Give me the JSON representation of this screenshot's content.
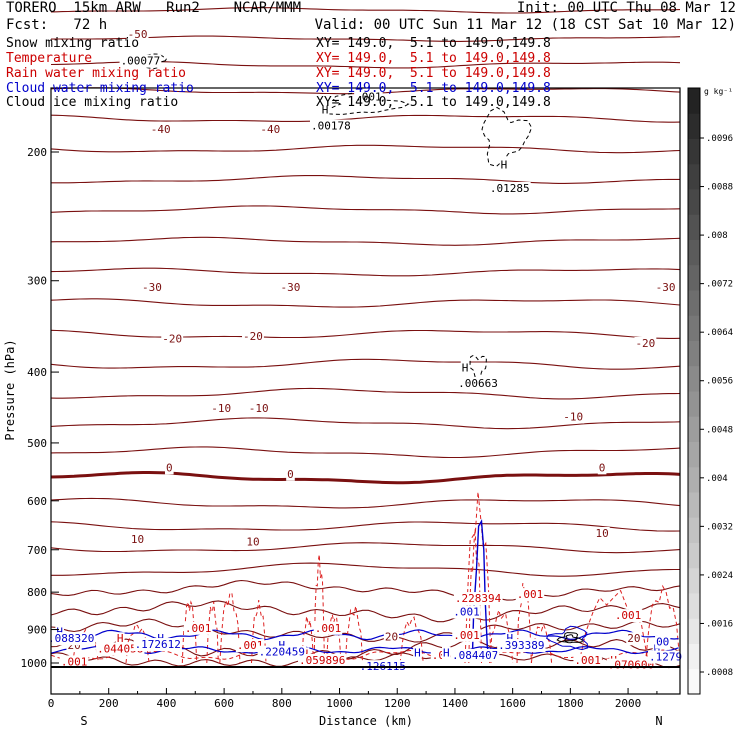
{
  "header": {
    "model": "TORERO  15km ARW   Run2    NCAR/MMM",
    "init": "Init: 00 UTC Thu 08 Mar 12",
    "fcst": "Fcst:   72 h",
    "valid": "Valid: 00 UTC Sun 11 Mar 12 (18 CST Sat 10 Mar 12)"
  },
  "fields": [
    {
      "name": "Snow mixing ratio",
      "xy": "XY= 149.0,  5.1 to 149.0,149.8",
      "color": "#000000"
    },
    {
      "name": "Temperature",
      "xy": "XY= 149.0,  5.1 to 149.0,149.8",
      "color": "#cc0000"
    },
    {
      "name": "Rain water mixing ratio",
      "xy": "XY= 149.0,  5.1 to 149.0,149.8",
      "color": "#cc0000"
    },
    {
      "name": "Cloud water mixing ratio",
      "xy": "XY= 149.0,  5.1 to 149.0,149.8",
      "color": "#0000cc"
    },
    {
      "name": "Cloud ice mixing ratio",
      "xy": "XY= 149.0,  5.1 to 149.0,149.8",
      "color": "#000000"
    }
  ],
  "colors": {
    "temperature": "#7a1010",
    "rain": "#dd2222",
    "cloud_water": "#0000cc",
    "snow": "#000000"
  },
  "chart_data": {
    "type": "contour",
    "xlabel": "Distance (km)",
    "ylabel": "Pressure (hPa)",
    "xlim": [
      0,
      2180
    ],
    "ylim": [
      1050,
      100
    ],
    "y_scale": "log",
    "x_ticks": [
      0,
      200,
      400,
      600,
      800,
      1000,
      1200,
      1400,
      1600,
      1800,
      2000
    ],
    "y_ticks": [
      200,
      300,
      400,
      500,
      600,
      700,
      800,
      900,
      1000
    ],
    "end_labels": {
      "left": "S",
      "right": "N"
    },
    "colorbar": {
      "unit": "g kg⁻¹",
      "ticks": [
        ".0008",
        ".0016",
        ".0024",
        ".0032",
        ".004",
        ".0048",
        ".0056",
        ".0064",
        ".0072",
        ".008",
        ".0088",
        ".0096"
      ]
    },
    "temperature_labels": [
      {
        "x": 300,
        "p": 138,
        "text": "-50"
      },
      {
        "x": 380,
        "p": 186,
        "text": "-40"
      },
      {
        "x": 760,
        "p": 186,
        "text": "-40"
      },
      {
        "x": 350,
        "p": 306,
        "text": "-30"
      },
      {
        "x": 830,
        "p": 306,
        "text": "-30"
      },
      {
        "x": 2130,
        "p": 306,
        "text": "-30"
      },
      {
        "x": 420,
        "p": 360,
        "text": "-20"
      },
      {
        "x": 700,
        "p": 357,
        "text": "-20"
      },
      {
        "x": 2060,
        "p": 365,
        "text": "-20"
      },
      {
        "x": 590,
        "p": 448,
        "text": "-10"
      },
      {
        "x": 720,
        "p": 448,
        "text": "-10"
      },
      {
        "x": 1810,
        "p": 460,
        "text": "-10"
      },
      {
        "x": 410,
        "p": 540,
        "text": "0"
      },
      {
        "x": 830,
        "p": 551,
        "text": "0"
      },
      {
        "x": 1910,
        "p": 540,
        "text": "0"
      },
      {
        "x": 300,
        "p": 677,
        "text": "10"
      },
      {
        "x": 700,
        "p": 682,
        "text": "10"
      },
      {
        "x": 1910,
        "p": 664,
        "text": "10"
      },
      {
        "x": 1180,
        "p": 920,
        "text": "20"
      },
      {
        "x": 80,
        "p": 945,
        "text": "20"
      },
      {
        "x": 2020,
        "p": 925,
        "text": "20"
      }
    ],
    "snow_labels": [
      {
        "x": 310,
        "p": 150,
        "text": ".00077"
      },
      {
        "x": 1100,
        "p": 168,
        "text": ".001"
      },
      {
        "x": 950,
        "p": 175,
        "text": "H"
      },
      {
        "x": 970,
        "p": 184,
        "text": ".00178"
      },
      {
        "x": 1570,
        "p": 208,
        "text": "H"
      },
      {
        "x": 1590,
        "p": 224,
        "text": ".01285"
      },
      {
        "x": 1435,
        "p": 394,
        "text": "H"
      },
      {
        "x": 1480,
        "p": 414,
        "text": ".00663"
      }
    ],
    "rain_labels": [
      {
        "x": 510,
        "p": 895,
        "text": ".001"
      },
      {
        "x": 960,
        "p": 895,
        "text": ".001"
      },
      {
        "x": 690,
        "p": 945,
        "text": ".001"
      },
      {
        "x": 1480,
        "p": 815,
        "text": ".228394"
      },
      {
        "x": 1660,
        "p": 805,
        "text": ".001"
      },
      {
        "x": 1440,
        "p": 915,
        "text": ".001"
      },
      {
        "x": 2000,
        "p": 860,
        "text": ".001"
      },
      {
        "x": 240,
        "p": 925,
        "text": "H"
      },
      {
        "x": 240,
        "p": 955,
        "text": ".044058"
      },
      {
        "x": 880,
        "p": 970,
        "text": "H"
      },
      {
        "x": 940,
        "p": 990,
        "text": ".059896"
      },
      {
        "x": 1360,
        "p": 978,
        "text": "H"
      },
      {
        "x": 1400,
        "p": 975,
        "text": ".053603"
      },
      {
        "x": 1860,
        "p": 990,
        "text": ".001"
      },
      {
        "x": 1950,
        "p": 990,
        "text": "H"
      },
      {
        "x": 2010,
        "p": 1005,
        "text": ".070600"
      },
      {
        "x": 80,
        "p": 995,
        "text": ".001"
      }
    ],
    "cloud_water_labels": [
      {
        "x": 30,
        "p": 905,
        "text": "H"
      },
      {
        "x": 70,
        "p": 925,
        "text": ".088320"
      },
      {
        "x": 380,
        "p": 925,
        "text": "H"
      },
      {
        "x": 370,
        "p": 942,
        "text": ".172612"
      },
      {
        "x": 800,
        "p": 945,
        "text": "H"
      },
      {
        "x": 800,
        "p": 965,
        "text": ".220459"
      },
      {
        "x": 1270,
        "p": 968,
        "text": "H"
      },
      {
        "x": 1370,
        "p": 968,
        "text": "H"
      },
      {
        "x": 1470,
        "p": 975,
        "text": ".084407"
      },
      {
        "x": 1440,
        "p": 850,
        "text": ".001"
      },
      {
        "x": 1590,
        "p": 925,
        "text": "H"
      },
      {
        "x": 1630,
        "p": 945,
        "text": ".393389"
      },
      {
        "x": 1150,
        "p": 1012,
        "text": "H"
      },
      {
        "x": 1150,
        "p": 1010,
        "text": ".126115"
      },
      {
        "x": 2100,
        "p": 955,
        "text": "H"
      },
      {
        "x": 2130,
        "p": 980,
        "text": ".1279"
      },
      {
        "x": 2120,
        "p": 935,
        "text": "00"
      }
    ]
  }
}
